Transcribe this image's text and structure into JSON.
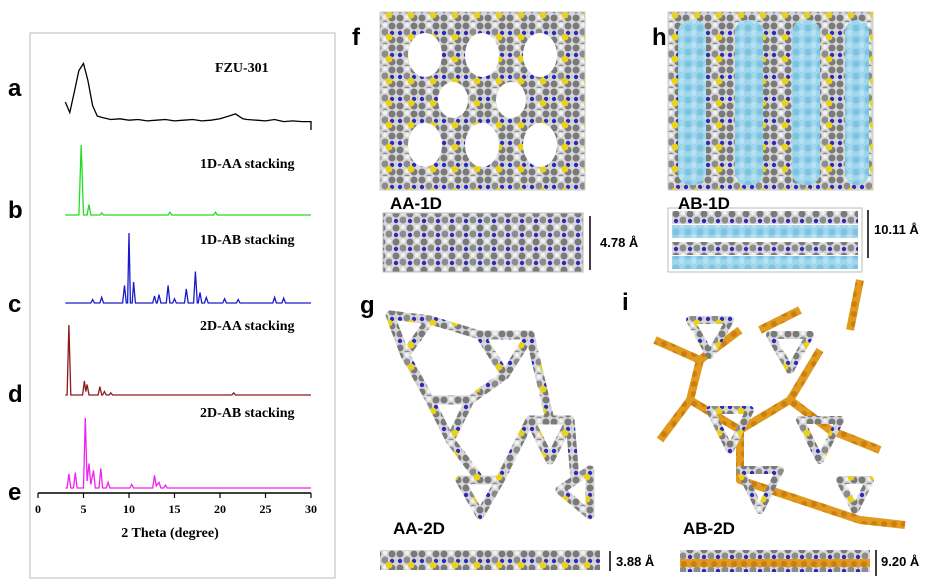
{
  "chart_data": {
    "type": "line",
    "xlabel": "2 Theta (degree)",
    "xlim": [
      0,
      30
    ],
    "xticks": [
      0,
      5,
      10,
      15,
      20,
      25,
      30
    ],
    "series": [
      {
        "label": "a",
        "name": "FZU-301",
        "color": "#000000",
        "x": [
          3,
          3.5,
          4,
          4.5,
          5,
          5.5,
          6,
          6.5,
          7,
          8,
          9,
          10,
          11,
          12,
          13,
          14,
          15,
          16,
          17,
          18,
          19,
          20,
          21,
          21.7,
          22.5,
          23,
          24,
          25,
          26,
          27,
          28,
          29,
          30,
          30
        ],
        "values": [
          40,
          25,
          55,
          85,
          95,
          70,
          35,
          20,
          18,
          15,
          16,
          14,
          15,
          13,
          14,
          15,
          13,
          14,
          15,
          13,
          14,
          16,
          20,
          23,
          16,
          15,
          14,
          13,
          15,
          12,
          13,
          12,
          12,
          0
        ]
      },
      {
        "label": "b",
        "name": "1D-AA stacking",
        "color": "#22dd22",
        "x": [
          3,
          4.5,
          4.75,
          5,
          5.4,
          5.6,
          5.8,
          6.8,
          7,
          7.2,
          14.3,
          14.5,
          14.7,
          19.3,
          19.5,
          19.7,
          30
        ],
        "values": [
          0,
          0,
          100,
          0,
          0,
          15,
          0,
          0,
          3,
          0,
          0,
          4,
          0,
          0,
          4,
          0,
          0
        ]
      },
      {
        "label": "c",
        "name": "1D-AB stacking",
        "color": "#1a1acc",
        "x": [
          3,
          5.8,
          6,
          6.2,
          6.8,
          7,
          7.2,
          9.3,
          9.5,
          9.7,
          9.85,
          10,
          10.15,
          10.35,
          10.5,
          10.7,
          12.6,
          12.8,
          13,
          13.1,
          13.3,
          13.5,
          14.1,
          14.3,
          14.5,
          14.8,
          15,
          15.2,
          16.1,
          16.3,
          16.5,
          17.1,
          17.3,
          17.5,
          17.6,
          17.8,
          18,
          18.3,
          18.5,
          18.7,
          20.3,
          20.5,
          20.7,
          21.8,
          22,
          22.2,
          25.8,
          26,
          26.2,
          26.8,
          27,
          27.2,
          30
        ],
        "values": [
          0,
          0,
          5,
          0,
          0,
          8,
          0,
          0,
          25,
          0,
          0,
          100,
          0,
          0,
          30,
          0,
          0,
          10,
          0,
          0,
          12,
          0,
          0,
          25,
          0,
          0,
          6,
          0,
          0,
          20,
          0,
          0,
          45,
          0,
          0,
          15,
          0,
          0,
          8,
          0,
          0,
          6,
          0,
          0,
          5,
          0,
          0,
          8,
          0,
          0,
          7,
          0,
          0
        ]
      },
      {
        "label": "d",
        "name": "2D-AA stacking",
        "color": "#8b1a1a",
        "x": [
          3,
          3.2,
          3.4,
          3.6,
          4.9,
          5.1,
          5.25,
          5.4,
          5.6,
          6.6,
          6.8,
          7,
          7.1,
          7.3,
          7.5,
          7.8,
          8,
          8.2,
          21.3,
          21.5,
          21.7,
          30
        ],
        "values": [
          0,
          0,
          100,
          0,
          0,
          20,
          5,
          15,
          0,
          0,
          12,
          0,
          0,
          5,
          0,
          0,
          3,
          0,
          0,
          3,
          0,
          0
        ]
      },
      {
        "label": "e",
        "name": "2D-AB stacking",
        "color": "#ee22ee",
        "x": [
          3,
          3.2,
          3.4,
          3.6,
          3.9,
          4.1,
          4.3,
          5,
          5.2,
          5.4,
          5.6,
          5.8,
          6.1,
          6.3,
          6.7,
          6.9,
          7.1,
          7.5,
          7.7,
          7.9,
          10.1,
          10.3,
          10.5,
          12.6,
          12.8,
          13,
          13.3,
          13.5,
          13.8,
          14,
          14.2,
          30
        ],
        "values": [
          0,
          0,
          20,
          0,
          0,
          22,
          0,
          0,
          100,
          10,
          35,
          5,
          25,
          0,
          0,
          28,
          0,
          0,
          8,
          0,
          0,
          5,
          0,
          0,
          18,
          3,
          8,
          0,
          0,
          4,
          0,
          0
        ]
      }
    ]
  },
  "panels": [
    {
      "letter": "f",
      "caption": "AA-1D",
      "spacing": "4.78 Å"
    },
    {
      "letter": "h",
      "caption": "AB-1D",
      "spacing": "10.11 Å"
    },
    {
      "letter": "g",
      "caption": "AA-2D",
      "spacing": "3.88 Å"
    },
    {
      "letter": "i",
      "caption": "AB-2D",
      "spacing": "9.20 Å"
    }
  ]
}
